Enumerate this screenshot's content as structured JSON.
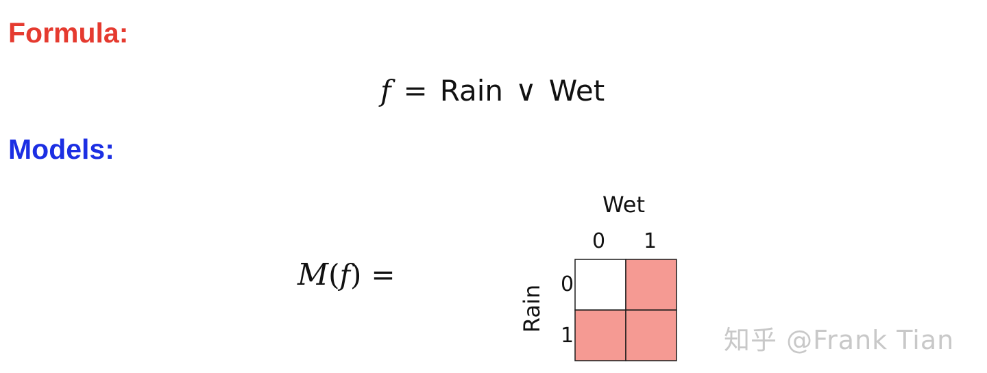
{
  "formula": {
    "heading": "Formula:",
    "heading_color": "#e53a2f",
    "var": "f",
    "eq": "=",
    "lhs_word": "Rain",
    "or_op": "∨",
    "rhs_word": "Wet"
  },
  "models": {
    "heading": "Models:",
    "heading_color": "#1c2fe3",
    "script_m": "M",
    "open_paren": "(",
    "var": "f",
    "close_paren": ")",
    "eq": "="
  },
  "chart_data": {
    "type": "heatmap",
    "xlabel": "Wet",
    "ylabel": "Rain",
    "x_ticks": [
      "0",
      "1"
    ],
    "y_ticks": [
      "0",
      "1"
    ],
    "cells": [
      [
        0,
        1
      ],
      [
        1,
        1
      ]
    ],
    "fill_color": "#f59a93",
    "empty_color": "#ffffff"
  },
  "watermark": "知乎 @Frank Tian"
}
